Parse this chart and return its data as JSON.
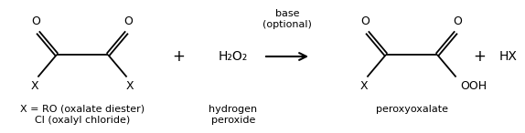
{
  "background_color": "#ffffff",
  "line_color": "#000000",
  "text_color": "#000000",
  "figsize": [
    5.74,
    1.46
  ],
  "dpi": 100,
  "font_size_main": 9,
  "font_size_small": 8,
  "reactant1_comment_line1": "X = RO (oxalate diester)",
  "reactant1_comment_line2": "Cl (oxalyl chloride)",
  "reactant2_label": "H₂O₂",
  "reactant2_comment1": "hydrogen",
  "reactant2_comment2": "peroxide",
  "arrow_label1": "base",
  "arrow_label2": "(optional)",
  "product_comment": "peroxyoxalate",
  "plus_label": "+",
  "hx_label": "HX"
}
